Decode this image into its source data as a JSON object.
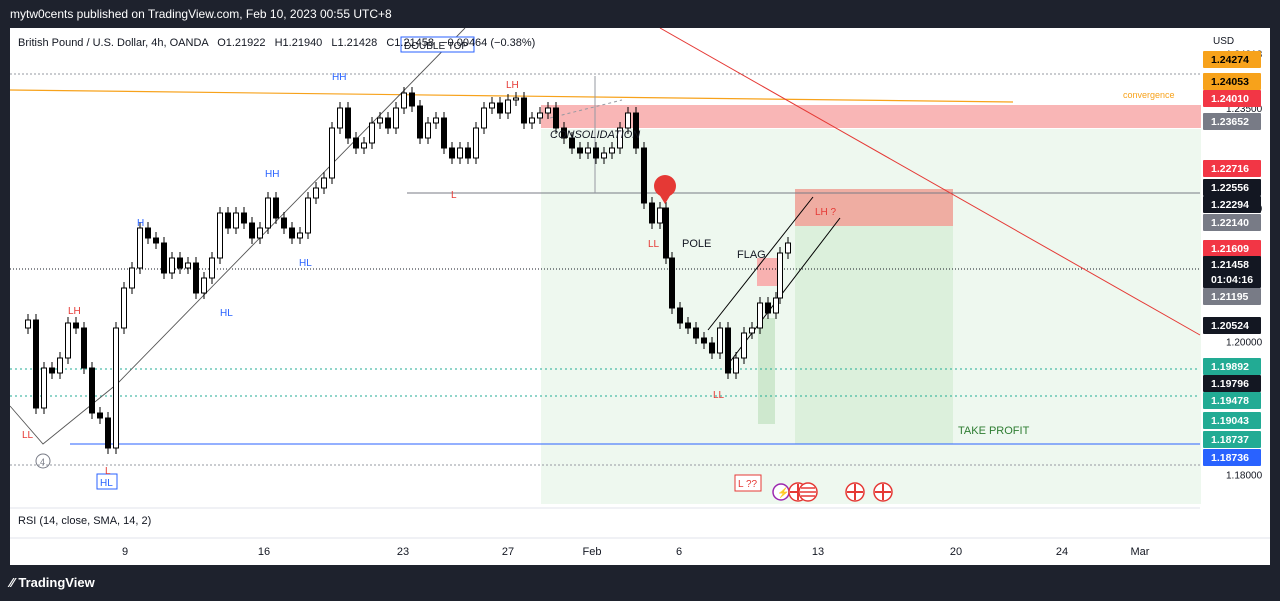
{
  "header": {
    "publish_line": "mytw0cents published on TradingView.com, Feb 10, 2023 00:55 UTC+8"
  },
  "legend": {
    "symbol_line": "British Pound / U.S. Dollar, 4h, OANDA",
    "open": "O1.21922",
    "high": "H1.21940",
    "low": "L1.21428",
    "close": "C1.21458",
    "change": "−0.00464 (−0.38%)"
  },
  "price_axis": {
    "currency": "USD",
    "ticks": [
      "1.24318",
      "1.23500",
      "1.22000",
      "1.20000",
      "1.18000"
    ],
    "badges": [
      {
        "value": "1.24274",
        "bg": "#f7a21b",
        "fg": "#000000"
      },
      {
        "value": "1.24053",
        "bg": "#f7a21b",
        "fg": "#000000"
      },
      {
        "value": "1.24010",
        "bg": "#f23645",
        "fg": "#ffffff"
      },
      {
        "value": "1.23652",
        "bg": "#787b86",
        "fg": "#ffffff"
      },
      {
        "value": "1.22716",
        "bg": "#f23645",
        "fg": "#ffffff"
      },
      {
        "value": "1.22556",
        "bg": "#131722",
        "fg": "#ffffff"
      },
      {
        "value": "1.22294",
        "bg": "#131722",
        "fg": "#ffffff"
      },
      {
        "value": "1.22140",
        "bg": "#787b86",
        "fg": "#ffffff"
      },
      {
        "value": "1.21609",
        "bg": "#f23645",
        "fg": "#ffffff"
      },
      {
        "value": "1.21458",
        "bg": "#131722",
        "fg": "#ffffff"
      },
      {
        "value": "01:04:16",
        "bg": "#131722",
        "fg": "#ffffff"
      },
      {
        "value": "1.21195",
        "bg": "#787b86",
        "fg": "#ffffff"
      },
      {
        "value": "1.20524",
        "bg": "#131722",
        "fg": "#ffffff"
      },
      {
        "value": "1.19892",
        "bg": "#22ab94",
        "fg": "#ffffff"
      },
      {
        "value": "1.19796",
        "bg": "#131722",
        "fg": "#ffffff"
      },
      {
        "value": "1.19478",
        "bg": "#22ab94",
        "fg": "#ffffff"
      },
      {
        "value": "1.19043",
        "bg": "#22ab94",
        "fg": "#ffffff"
      },
      {
        "value": "1.18737",
        "bg": "#22ab94",
        "fg": "#ffffff"
      },
      {
        "value": "1.18736",
        "bg": "#2962ff",
        "fg": "#ffffff"
      }
    ]
  },
  "time_axis": {
    "labels": [
      "9",
      "16",
      "23",
      "27",
      "Feb",
      "6",
      "13",
      "20",
      "24",
      "Mar"
    ]
  },
  "annotations": {
    "hh_labels": [
      "HH",
      "HH",
      "HH",
      "H"
    ],
    "hl_labels": [
      "HL",
      "HL",
      "HL"
    ],
    "lh_labels": [
      "LH",
      "LH"
    ],
    "ll_labels": [
      "LL",
      "LL",
      "LL"
    ],
    "l_labels": [
      "L",
      "L"
    ],
    "double_top": "DOUBLE TOP",
    "consolidation": "CONSOLIDATION",
    "pole": "POLE",
    "flag": "FLAG",
    "lh_question": "LH ?",
    "l_question": "L ??",
    "take_profit": "TAKE PROFIT",
    "convergence": "convergence",
    "circled_number": "4"
  },
  "rsi": {
    "label": "RSI (14, close, SMA, 14, 2)"
  },
  "footer": {
    "brand": "TradingView"
  },
  "colors": {
    "bullish": "#000000",
    "bearish": "#000000",
    "zone_red": "#f8a9a9",
    "zone_green": "#e8f5e9",
    "trendline_red": "#e53935",
    "trendline_orange": "#f7a21b",
    "support_blue": "#2962ff"
  },
  "chart_data": {
    "type": "candlestick",
    "title": "British Pound / U.S. Dollar, 4h, OANDA",
    "ylabel": "USD",
    "ylim": [
      1.175,
      1.247
    ],
    "x_tick_labels": [
      "9",
      "16",
      "23",
      "27",
      "Feb",
      "6",
      "13",
      "20",
      "24",
      "Mar"
    ],
    "last_ohlc": {
      "open": 1.21922,
      "high": 1.2194,
      "low": 1.21428,
      "close": 1.21458
    },
    "levels": {
      "resistance_zone": [
        1.2365,
        1.2401
      ],
      "lh_zone": [
        1.2214,
        1.2272
      ],
      "support": 1.1874,
      "take_profit_levels": [
        1.19892,
        1.19478,
        1.19043,
        1.18737
      ],
      "current_price": 1.21458,
      "consolidation_low": 1.2255
    }
  }
}
